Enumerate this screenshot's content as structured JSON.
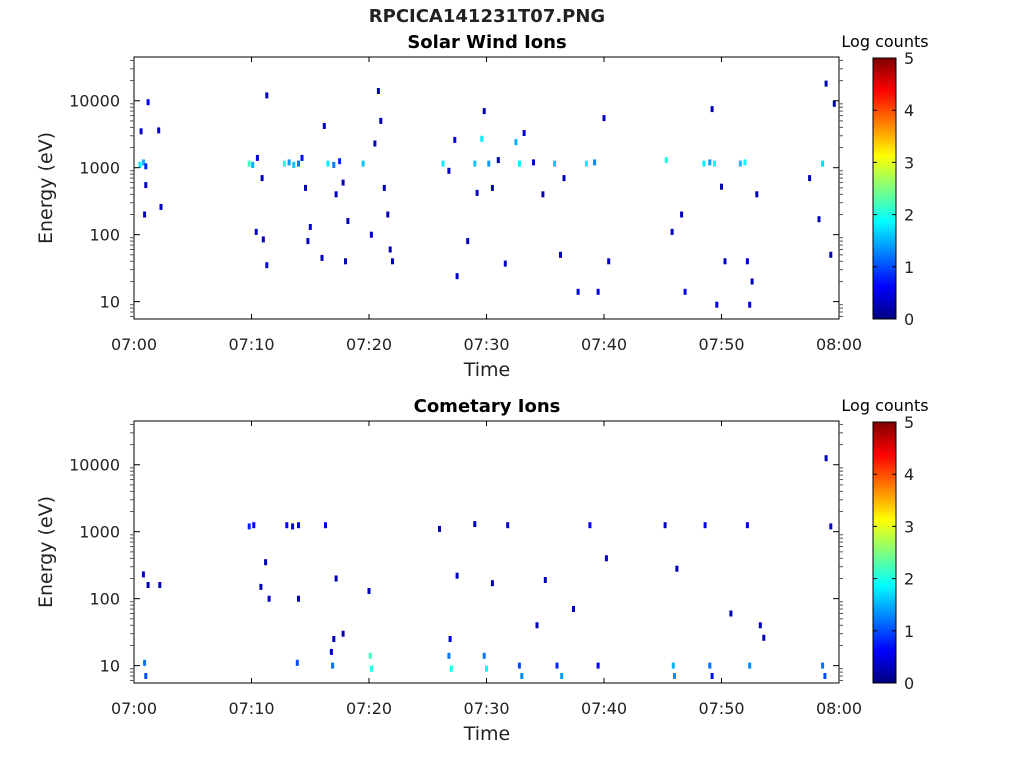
{
  "figure_title": "RPCICA141231T07.PNG",
  "colors": {
    "colormap": [
      "#00007f",
      "#0000ff",
      "#007fff",
      "#00ffff",
      "#7fff7f",
      "#ffff00",
      "#ff7f00",
      "#ff0000",
      "#7f0000"
    ]
  },
  "chart_data": [
    {
      "type": "heatmap",
      "title": "Solar Wind Ions",
      "xlabel": "Time",
      "ylabel": "Energy (eV)",
      "colorbar_label": "Log counts",
      "colorbar_ticks": [
        "0",
        "1",
        "2",
        "3",
        "4",
        "5"
      ],
      "x_ticks": [
        "07:00",
        "07:10",
        "07:20",
        "07:30",
        "07:40",
        "07:50",
        "08:00"
      ],
      "y_ticks": [
        "10",
        "100",
        "1000",
        "10000"
      ],
      "xlim_minutes": [
        0,
        60
      ],
      "ylim_eV": [
        5.5,
        45000
      ],
      "y_scale": "log",
      "clim": [
        0,
        5
      ],
      "points": [
        {
          "t": 0.5,
          "e": 1100,
          "v": 1.8
        },
        {
          "t": 0.8,
          "e": 1200,
          "v": 1.5
        },
        {
          "t": 1.0,
          "e": 1050,
          "v": 0.8
        },
        {
          "t": 1.2,
          "e": 9500,
          "v": 0.6
        },
        {
          "t": 0.6,
          "e": 3500,
          "v": 0.4
        },
        {
          "t": 1.0,
          "e": 550,
          "v": 0.3
        },
        {
          "t": 0.9,
          "e": 200,
          "v": 0.3
        },
        {
          "t": 2.1,
          "e": 3600,
          "v": 0.4
        },
        {
          "t": 2.3,
          "e": 260,
          "v": 0.3
        },
        {
          "t": 9.8,
          "e": 1150,
          "v": 2.2
        },
        {
          "t": 10.1,
          "e": 1100,
          "v": 1.5
        },
        {
          "t": 10.5,
          "e": 1400,
          "v": 0.5
        },
        {
          "t": 10.9,
          "e": 700,
          "v": 0.3
        },
        {
          "t": 11.3,
          "e": 12000,
          "v": 0.3
        },
        {
          "t": 10.4,
          "e": 110,
          "v": 0.3
        },
        {
          "t": 11.0,
          "e": 85,
          "v": 0.3
        },
        {
          "t": 11.3,
          "e": 35,
          "v": 0.5
        },
        {
          "t": 12.8,
          "e": 1150,
          "v": 2.0
        },
        {
          "t": 13.2,
          "e": 1200,
          "v": 1.4
        },
        {
          "t": 13.6,
          "e": 1100,
          "v": 1.6
        },
        {
          "t": 14.0,
          "e": 1150,
          "v": 1.2
        },
        {
          "t": 14.3,
          "e": 1400,
          "v": 0.7
        },
        {
          "t": 14.6,
          "e": 500,
          "v": 0.3
        },
        {
          "t": 15.0,
          "e": 130,
          "v": 0.4
        },
        {
          "t": 14.8,
          "e": 80,
          "v": 0.3
        },
        {
          "t": 16.0,
          "e": 45,
          "v": 0.3
        },
        {
          "t": 16.5,
          "e": 1150,
          "v": 1.8
        },
        {
          "t": 17.0,
          "e": 1100,
          "v": 1.2
        },
        {
          "t": 17.5,
          "e": 1250,
          "v": 0.8
        },
        {
          "t": 16.2,
          "e": 4200,
          "v": 0.3
        },
        {
          "t": 17.2,
          "e": 400,
          "v": 0.3
        },
        {
          "t": 17.8,
          "e": 600,
          "v": 0.3
        },
        {
          "t": 18.2,
          "e": 160,
          "v": 0.3
        },
        {
          "t": 18.0,
          "e": 40,
          "v": 0.3
        },
        {
          "t": 19.5,
          "e": 1150,
          "v": 1.6
        },
        {
          "t": 20.2,
          "e": 100,
          "v": 0.3
        },
        {
          "t": 20.5,
          "e": 2300,
          "v": 0.3
        },
        {
          "t": 20.8,
          "e": 14000,
          "v": 0.3
        },
        {
          "t": 21.3,
          "e": 500,
          "v": 0.3
        },
        {
          "t": 21.6,
          "e": 200,
          "v": 0.3
        },
        {
          "t": 21.8,
          "e": 60,
          "v": 0.3
        },
        {
          "t": 22.0,
          "e": 40,
          "v": 0.3
        },
        {
          "t": 21.0,
          "e": 5000,
          "v": 0.3
        },
        {
          "t": 26.3,
          "e": 1150,
          "v": 1.8
        },
        {
          "t": 26.8,
          "e": 900,
          "v": 0.3
        },
        {
          "t": 27.3,
          "e": 2600,
          "v": 0.4
        },
        {
          "t": 27.5,
          "e": 24,
          "v": 0.3
        },
        {
          "t": 29.0,
          "e": 1150,
          "v": 1.6
        },
        {
          "t": 29.6,
          "e": 2700,
          "v": 1.8
        },
        {
          "t": 30.2,
          "e": 1150,
          "v": 1.4
        },
        {
          "t": 29.2,
          "e": 420,
          "v": 0.3
        },
        {
          "t": 28.4,
          "e": 80,
          "v": 0.3
        },
        {
          "t": 29.8,
          "e": 7000,
          "v": 0.3
        },
        {
          "t": 30.5,
          "e": 500,
          "v": 0.3
        },
        {
          "t": 31.0,
          "e": 1300,
          "v": 0.3
        },
        {
          "t": 31.6,
          "e": 37,
          "v": 0.3
        },
        {
          "t": 32.5,
          "e": 2400,
          "v": 1.5
        },
        {
          "t": 32.8,
          "e": 1150,
          "v": 1.8
        },
        {
          "t": 33.2,
          "e": 3300,
          "v": 0.4
        },
        {
          "t": 34.0,
          "e": 1200,
          "v": 0.4
        },
        {
          "t": 34.8,
          "e": 400,
          "v": 0.3
        },
        {
          "t": 35.8,
          "e": 1150,
          "v": 1.6
        },
        {
          "t": 36.3,
          "e": 50,
          "v": 0.3
        },
        {
          "t": 36.6,
          "e": 700,
          "v": 0.3
        },
        {
          "t": 37.8,
          "e": 14,
          "v": 0.5
        },
        {
          "t": 38.5,
          "e": 1150,
          "v": 1.8
        },
        {
          "t": 39.2,
          "e": 1200,
          "v": 1.3
        },
        {
          "t": 39.5,
          "e": 14,
          "v": 0.5
        },
        {
          "t": 40.0,
          "e": 5500,
          "v": 0.3
        },
        {
          "t": 40.4,
          "e": 40,
          "v": 0.3
        },
        {
          "t": 45.3,
          "e": 1300,
          "v": 2.0
        },
        {
          "t": 45.8,
          "e": 110,
          "v": 0.3
        },
        {
          "t": 46.6,
          "e": 200,
          "v": 0.3
        },
        {
          "t": 46.9,
          "e": 14,
          "v": 0.5
        },
        {
          "t": 48.5,
          "e": 1150,
          "v": 1.8
        },
        {
          "t": 49.0,
          "e": 1200,
          "v": 1.4
        },
        {
          "t": 49.4,
          "e": 1150,
          "v": 1.9
        },
        {
          "t": 49.6,
          "e": 9,
          "v": 0.5
        },
        {
          "t": 49.2,
          "e": 7500,
          "v": 0.3
        },
        {
          "t": 50.0,
          "e": 520,
          "v": 0.3
        },
        {
          "t": 50.3,
          "e": 40,
          "v": 0.3
        },
        {
          "t": 51.6,
          "e": 1150,
          "v": 1.6
        },
        {
          "t": 52.0,
          "e": 1200,
          "v": 1.9
        },
        {
          "t": 52.4,
          "e": 9,
          "v": 0.5
        },
        {
          "t": 52.6,
          "e": 20,
          "v": 0.3
        },
        {
          "t": 52.2,
          "e": 40,
          "v": 0.3
        },
        {
          "t": 53.0,
          "e": 400,
          "v": 0.3
        },
        {
          "t": 58.6,
          "e": 1150,
          "v": 1.7
        },
        {
          "t": 58.9,
          "e": 18000,
          "v": 0.3
        },
        {
          "t": 58.3,
          "e": 170,
          "v": 0.3
        },
        {
          "t": 59.3,
          "e": 50,
          "v": 0.3
        },
        {
          "t": 59.6,
          "e": 9000,
          "v": 0.3
        },
        {
          "t": 57.5,
          "e": 700,
          "v": 0.3
        }
      ]
    },
    {
      "type": "heatmap",
      "title": "Cometary Ions",
      "xlabel": "Time",
      "ylabel": "Energy (eV)",
      "colorbar_label": "Log counts",
      "colorbar_ticks": [
        "0",
        "1",
        "2",
        "3",
        "4",
        "5"
      ],
      "x_ticks": [
        "07:00",
        "07:10",
        "07:20",
        "07:30",
        "07:40",
        "07:50",
        "08:00"
      ],
      "y_ticks": [
        "10",
        "100",
        "1000",
        "10000"
      ],
      "xlim_minutes": [
        0,
        60
      ],
      "ylim_eV": [
        5.5,
        45000
      ],
      "y_scale": "log",
      "clim": [
        0,
        5
      ],
      "points": [
        {
          "t": 0.9,
          "e": 11,
          "v": 1.2
        },
        {
          "t": 1.0,
          "e": 7,
          "v": 1.0
        },
        {
          "t": 0.8,
          "e": 230,
          "v": 0.4
        },
        {
          "t": 1.2,
          "e": 160,
          "v": 0.3
        },
        {
          "t": 2.2,
          "e": 160,
          "v": 0.3
        },
        {
          "t": 9.8,
          "e": 1200,
          "v": 0.8
        },
        {
          "t": 10.2,
          "e": 1250,
          "v": 0.6
        },
        {
          "t": 11.2,
          "e": 350,
          "v": 0.3
        },
        {
          "t": 10.8,
          "e": 150,
          "v": 0.3
        },
        {
          "t": 11.5,
          "e": 100,
          "v": 0.3
        },
        {
          "t": 13.0,
          "e": 1250,
          "v": 0.6
        },
        {
          "t": 13.5,
          "e": 1200,
          "v": 0.5
        },
        {
          "t": 14.0,
          "e": 1250,
          "v": 0.6
        },
        {
          "t": 13.9,
          "e": 11,
          "v": 1.0
        },
        {
          "t": 14.0,
          "e": 100,
          "v": 0.3
        },
        {
          "t": 16.3,
          "e": 1250,
          "v": 0.5
        },
        {
          "t": 16.8,
          "e": 16,
          "v": 0.3
        },
        {
          "t": 17.0,
          "e": 25,
          "v": 0.3
        },
        {
          "t": 17.2,
          "e": 200,
          "v": 0.3
        },
        {
          "t": 17.8,
          "e": 30,
          "v": 0.3
        },
        {
          "t": 16.9,
          "e": 10,
          "v": 1.2
        },
        {
          "t": 20.1,
          "e": 14,
          "v": 2.2
        },
        {
          "t": 20.2,
          "e": 9,
          "v": 2.0
        },
        {
          "t": 20.0,
          "e": 130,
          "v": 0.3
        },
        {
          "t": 26.0,
          "e": 1100,
          "v": 0.3
        },
        {
          "t": 26.8,
          "e": 14,
          "v": 1.2
        },
        {
          "t": 27.0,
          "e": 9,
          "v": 2.0
        },
        {
          "t": 26.9,
          "e": 25,
          "v": 0.5
        },
        {
          "t": 27.5,
          "e": 220,
          "v": 0.3
        },
        {
          "t": 29.0,
          "e": 1300,
          "v": 0.3
        },
        {
          "t": 29.8,
          "e": 14,
          "v": 1.2
        },
        {
          "t": 30.0,
          "e": 9,
          "v": 1.9
        },
        {
          "t": 30.5,
          "e": 170,
          "v": 0.3
        },
        {
          "t": 31.8,
          "e": 1250,
          "v": 0.4
        },
        {
          "t": 32.8,
          "e": 10,
          "v": 1.0
        },
        {
          "t": 33.0,
          "e": 7,
          "v": 1.3
        },
        {
          "t": 34.3,
          "e": 40,
          "v": 0.3
        },
        {
          "t": 35.0,
          "e": 190,
          "v": 0.3
        },
        {
          "t": 36.0,
          "e": 10,
          "v": 0.8
        },
        {
          "t": 36.4,
          "e": 7,
          "v": 1.4
        },
        {
          "t": 37.4,
          "e": 70,
          "v": 0.4
        },
        {
          "t": 38.8,
          "e": 1250,
          "v": 0.6
        },
        {
          "t": 39.5,
          "e": 10,
          "v": 0.6
        },
        {
          "t": 40.2,
          "e": 400,
          "v": 0.3
        },
        {
          "t": 45.2,
          "e": 1250,
          "v": 0.3
        },
        {
          "t": 45.9,
          "e": 10,
          "v": 1.5
        },
        {
          "t": 46.0,
          "e": 7,
          "v": 1.3
        },
        {
          "t": 46.2,
          "e": 280,
          "v": 0.3
        },
        {
          "t": 48.6,
          "e": 1250,
          "v": 0.5
        },
        {
          "t": 49.0,
          "e": 10,
          "v": 1.2
        },
        {
          "t": 49.2,
          "e": 7,
          "v": 0.7
        },
        {
          "t": 50.8,
          "e": 60,
          "v": 0.3
        },
        {
          "t": 52.2,
          "e": 1250,
          "v": 0.4
        },
        {
          "t": 52.4,
          "e": 10,
          "v": 1.3
        },
        {
          "t": 53.3,
          "e": 40,
          "v": 0.3
        },
        {
          "t": 53.6,
          "e": 26,
          "v": 0.3
        },
        {
          "t": 58.6,
          "e": 10,
          "v": 1.2
        },
        {
          "t": 58.8,
          "e": 7,
          "v": 1.0
        },
        {
          "t": 59.3,
          "e": 1200,
          "v": 0.4
        },
        {
          "t": 58.9,
          "e": 12500,
          "v": 0.3
        }
      ]
    }
  ]
}
